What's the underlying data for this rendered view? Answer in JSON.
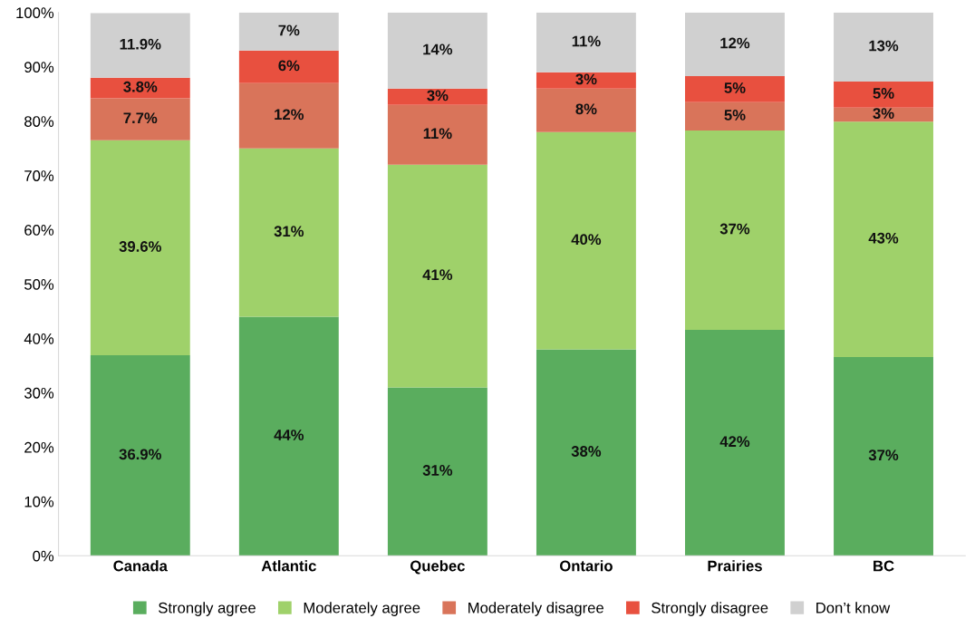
{
  "chart_data": {
    "type": "bar",
    "stacked": true,
    "categories": [
      "Canada",
      "Atlantic",
      "Quebec",
      "Ontario",
      "Prairies",
      "BC"
    ],
    "series": [
      {
        "name": "Strongly agree",
        "color": "#5aad5e",
        "values": [
          36.9,
          44,
          31,
          38,
          41.6,
          36.6
        ],
        "value_labels": [
          "36.9%",
          "44%",
          "31%",
          "38%",
          "42%",
          "37%"
        ]
      },
      {
        "name": "Moderately agree",
        "color": "#9fd16a",
        "values": [
          39.6,
          31,
          41,
          40,
          36.7,
          43.3
        ],
        "value_labels": [
          "39.6%",
          "31%",
          "41%",
          "40%",
          "37%",
          "43%"
        ]
      },
      {
        "name": "Moderately disagree",
        "color": "#d9745a",
        "values": [
          7.7,
          12,
          11,
          8,
          5.2,
          2.6
        ],
        "value_labels": [
          "7.7%",
          "12%",
          "11%",
          "8%",
          "5%",
          "3%"
        ]
      },
      {
        "name": "Strongly disagree",
        "color": "#e8503f",
        "values": [
          3.8,
          6,
          3,
          3,
          4.8,
          4.8
        ],
        "value_labels": [
          "3.8%",
          "6%",
          "3%",
          "3%",
          "5%",
          "5%"
        ]
      },
      {
        "name": "Don’t know",
        "color": "#d0d0d0",
        "values": [
          11.9,
          7,
          14,
          11,
          11.7,
          12.7
        ],
        "value_labels": [
          "11.9%",
          "7%",
          "14%",
          "11%",
          "12%",
          "13%"
        ]
      }
    ],
    "ylim": [
      0,
      100
    ],
    "yticks": [
      {
        "value": 0,
        "label": "0%"
      },
      {
        "value": 10,
        "label": "10%"
      },
      {
        "value": 20,
        "label": "20%"
      },
      {
        "value": 30,
        "label": "30%"
      },
      {
        "value": 40,
        "label": "40%"
      },
      {
        "value": 50,
        "label": "50%"
      },
      {
        "value": 60,
        "label": "60%"
      },
      {
        "value": 70,
        "label": "70%"
      },
      {
        "value": 80,
        "label": "80%"
      },
      {
        "value": 90,
        "label": "90%"
      },
      {
        "value": 100,
        "label": "100%"
      }
    ],
    "legend": "bottom"
  }
}
